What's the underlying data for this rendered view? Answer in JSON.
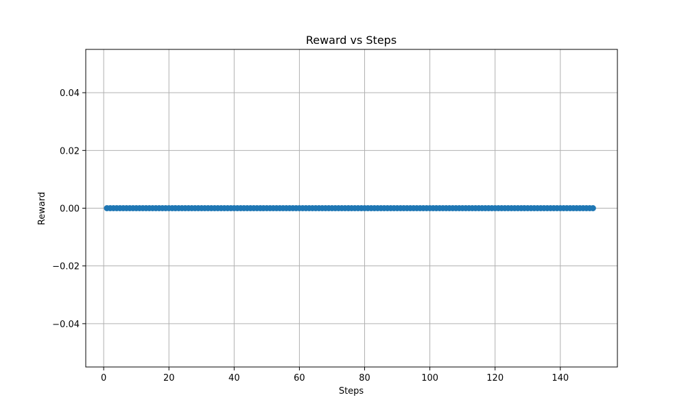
{
  "chart_data": {
    "type": "scatter",
    "title": "Reward vs Steps",
    "xlabel": "Steps",
    "ylabel": "Reward",
    "xlim": [
      -5.5,
      157.5
    ],
    "ylim": [
      -0.055,
      0.055
    ],
    "xticks": [
      0,
      20,
      40,
      60,
      80,
      100,
      120,
      140
    ],
    "xtick_labels": [
      "0",
      "20",
      "40",
      "60",
      "80",
      "100",
      "120",
      "140"
    ],
    "yticks": [
      -0.04,
      -0.02,
      0.0,
      0.02,
      0.04
    ],
    "ytick_labels": [
      "−0.04",
      "−0.02",
      "0.00",
      "0.02",
      "0.04"
    ],
    "grid": true,
    "series": [
      {
        "color": "#1f77b4",
        "x_start": 1,
        "x_end": 150,
        "x_step": 1,
        "y": 0.0
      }
    ]
  }
}
